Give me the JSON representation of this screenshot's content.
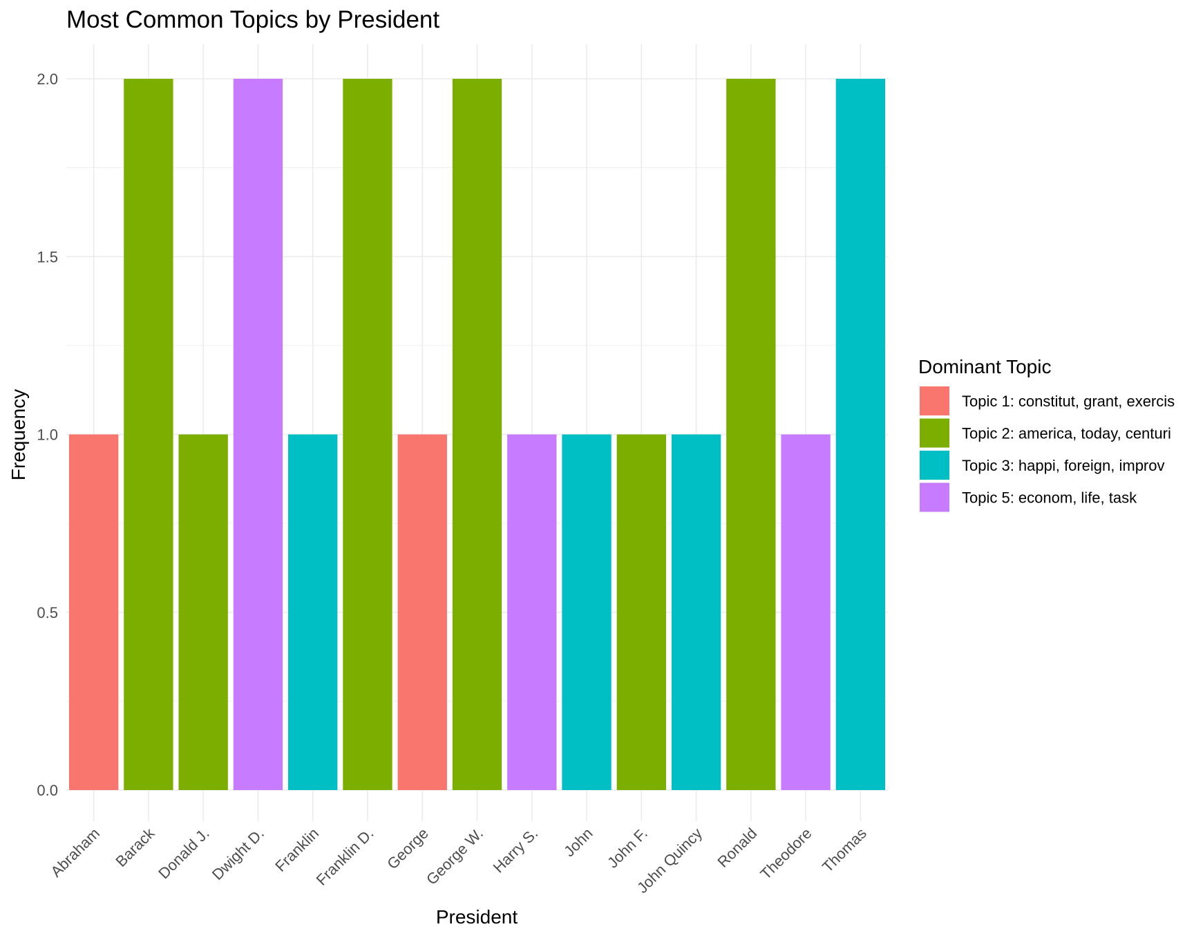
{
  "chart_data": {
    "type": "bar",
    "title": "Most Common Topics by President",
    "xlabel": "President",
    "ylabel": "Frequency",
    "ylim": [
      0,
      2.1
    ],
    "yticks": [
      "0.0",
      "0.5",
      "1.0",
      "1.5",
      "2.0"
    ],
    "grid": true,
    "legend_title": "Dominant Topic",
    "legend_position": "right",
    "categories": [
      "Abraham",
      "Barack",
      "Donald J.",
      "Dwight D.",
      "Franklin",
      "Franklin D.",
      "George",
      "George W.",
      "Harry S.",
      "John",
      "John F.",
      "John Quincy",
      "Ronald",
      "Theodore",
      "Thomas"
    ],
    "values": [
      1,
      2,
      1,
      2,
      1,
      2,
      1,
      2,
      1,
      1,
      1,
      1,
      2,
      1,
      2
    ],
    "bar_topics": [
      0,
      1,
      1,
      3,
      2,
      1,
      0,
      1,
      3,
      2,
      1,
      2,
      1,
      3,
      2
    ],
    "series": [
      {
        "name": "Topic 1: constitut, grant, exercis",
        "color": "#F8766D"
      },
      {
        "name": "Topic 2: america, today, centuri",
        "color": "#7CAE00"
      },
      {
        "name": "Topic 3: happi, foreign, improv",
        "color": "#00BFC4"
      },
      {
        "name": "Topic 5: econom, life, task",
        "color": "#C77CFF"
      }
    ]
  }
}
